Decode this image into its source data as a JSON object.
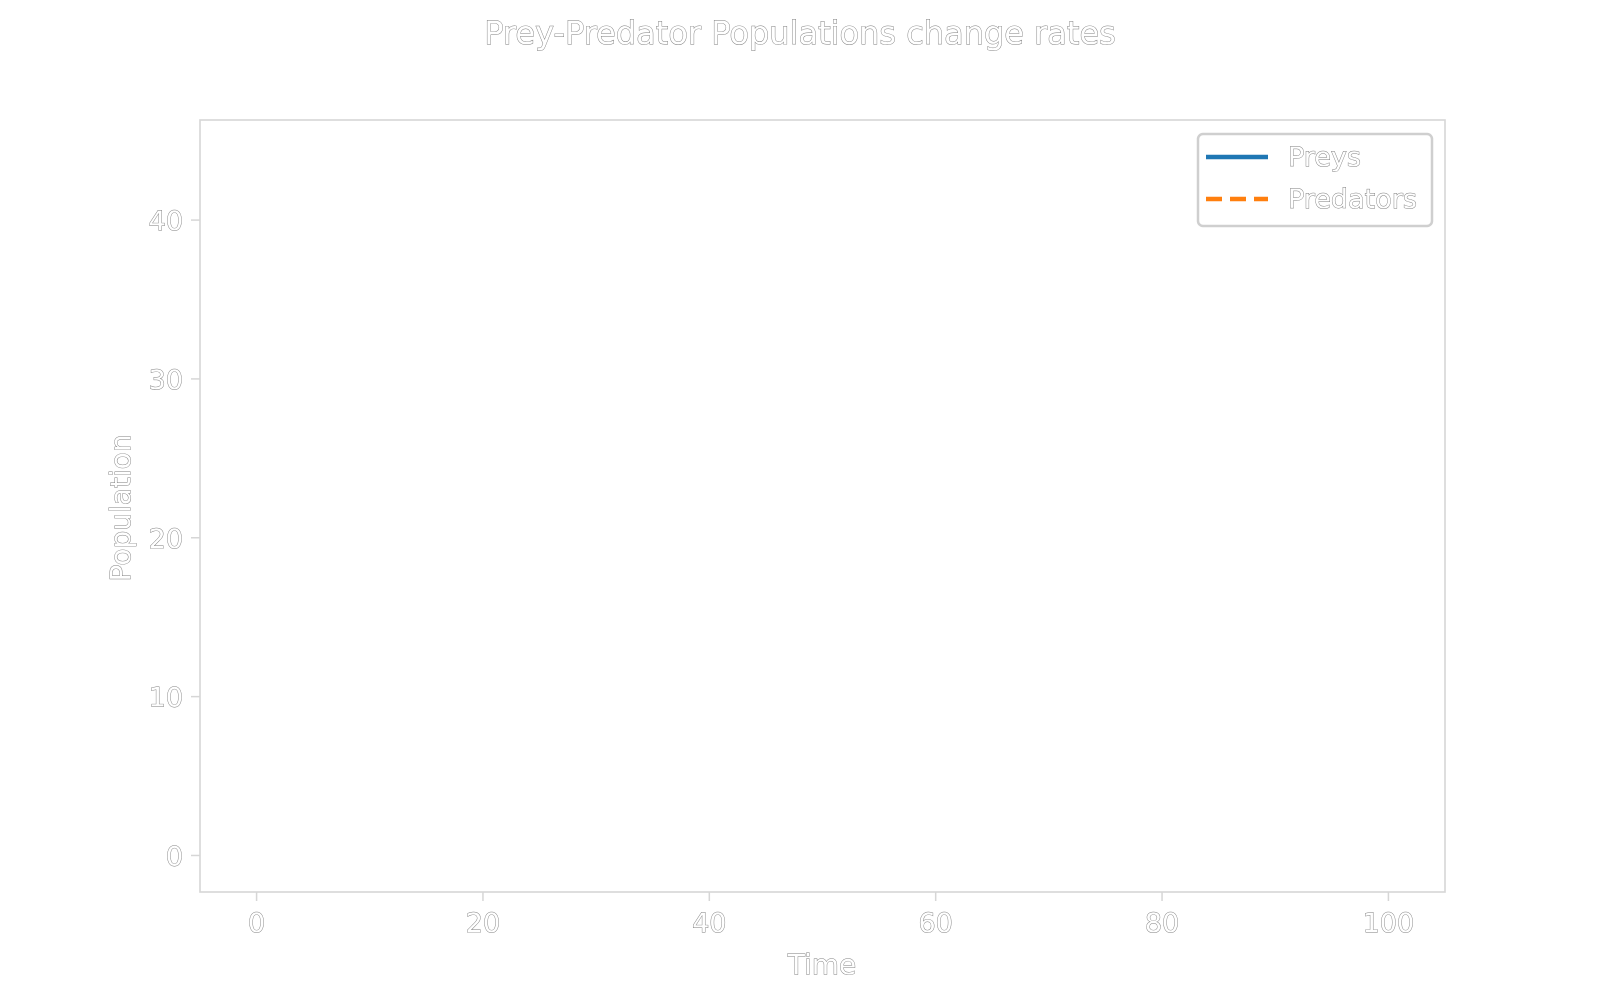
{
  "chart_data": {
    "type": "line",
    "title": "Prey-Predator Populations change rates",
    "xlabel": "Time",
    "ylabel": "Population",
    "xlim": [
      -5,
      105
    ],
    "ylim": [
      -2.3,
      46.3
    ],
    "x_ticks": [
      0,
      20,
      40,
      60,
      80,
      100
    ],
    "y_ticks": [
      0,
      10,
      20,
      30,
      40
    ],
    "x_tick_labels": [
      "0",
      "20",
      "40",
      "60",
      "80",
      "100"
    ],
    "y_tick_labels": [
      "0",
      "10",
      "20",
      "30",
      "40"
    ],
    "grid": false,
    "legend": {
      "placement": "top-right",
      "entries": [
        "Preys",
        "Predators"
      ]
    },
    "series": [
      {
        "name": "Preys",
        "color": "#1f77b4",
        "linestyle": "solid",
        "x": [],
        "y": []
      },
      {
        "name": "Predators",
        "color": "#ff7f0e",
        "linestyle": "dashed",
        "x": [],
        "y": []
      }
    ]
  },
  "colors": {
    "axis": "#d6d6d6",
    "text_stroke": "#7a7a7a",
    "legend_border": "#cfcfcf"
  }
}
